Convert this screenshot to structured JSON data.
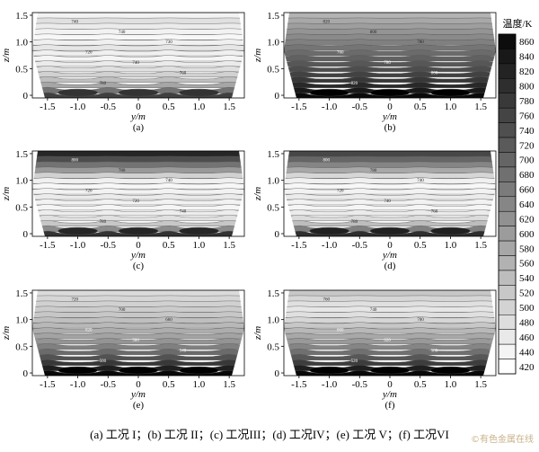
{
  "chart_data": {
    "type": "heatmap",
    "caption": "(a) 工况 I；(b) 工况 II；(c) 工况III；(d) 工况IV；(e) 工况 V；(f) 工况VI",
    "xlabel": "y/m",
    "ylabel": "z/m",
    "xlim": [
      -1.75,
      1.75
    ],
    "ylim": [
      -0.05,
      1.55
    ],
    "xticks": [
      "-1.5",
      "-1.0",
      "-0.5",
      "0",
      "0.5",
      "1.0",
      "1.5"
    ],
    "yticks": [
      "0",
      "0.5",
      "1.0",
      "1.5"
    ],
    "colorbar": {
      "title": "温度/K",
      "levels": [
        860,
        840,
        820,
        800,
        780,
        760,
        740,
        720,
        700,
        680,
        660,
        640,
        620,
        600,
        580,
        560,
        540,
        520,
        500,
        480,
        460,
        440,
        420
      ]
    },
    "panels": [
      {
        "id": "a",
        "label": "(a)",
        "contour_labels": [
          "740",
          "740",
          "730",
          "720",
          "740",
          "760",
          "780"
        ]
      },
      {
        "id": "b",
        "label": "(b)",
        "contour_labels": [
          "820",
          "800",
          "780",
          "760",
          "780",
          "800",
          "820"
        ]
      },
      {
        "id": "c",
        "label": "(c)",
        "contour_labels": [
          "800",
          "780",
          "740",
          "720",
          "720",
          "740",
          "780"
        ]
      },
      {
        "id": "d",
        "label": "(d)",
        "contour_labels": [
          "800",
          "780",
          "740",
          "720",
          "740",
          "760",
          "780"
        ]
      },
      {
        "id": "e",
        "label": "(e)",
        "contour_labels": [
          "720",
          "700",
          "660",
          "620",
          "580",
          "540",
          "500"
        ]
      },
      {
        "id": "f",
        "label": "(f)",
        "contour_labels": [
          "760",
          "740",
          "700",
          "660",
          "620",
          "580",
          "520"
        ]
      }
    ]
  },
  "watermark": "©有色金属在线"
}
